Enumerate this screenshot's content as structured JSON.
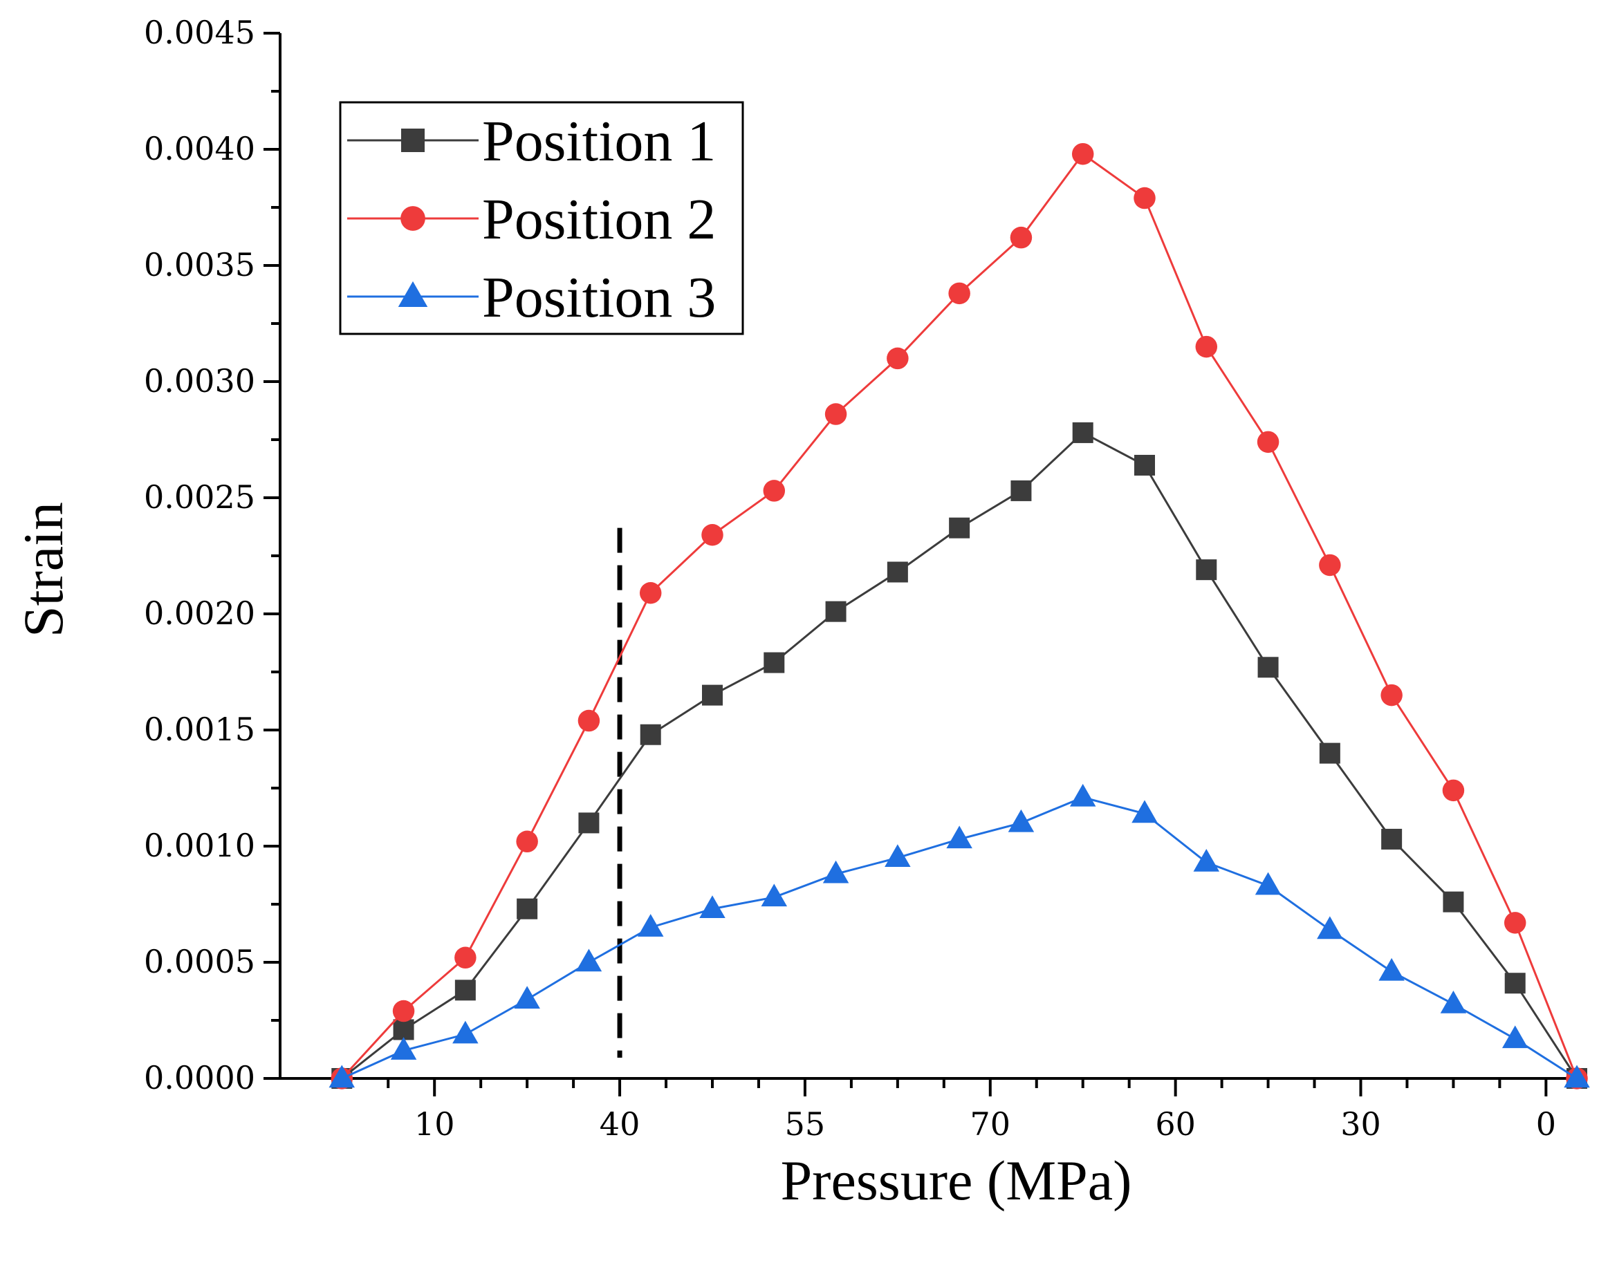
{
  "chart_data": {
    "type": "line",
    "title": "",
    "xlabel": "Pressure (MPa)",
    "ylabel": "Strain",
    "x_index": [
      0,
      1,
      2,
      3,
      4,
      5,
      6,
      7,
      8,
      9,
      10,
      11,
      12,
      13,
      14,
      15,
      16,
      17,
      18,
      19,
      20
    ],
    "x_tick_labels": [
      {
        "at": 1.5,
        "label": "10"
      },
      {
        "at": 4.5,
        "label": "40"
      },
      {
        "at": 7.5,
        "label": "55"
      },
      {
        "at": 10.5,
        "label": "70"
      },
      {
        "at": 13.5,
        "label": "60"
      },
      {
        "at": 16.5,
        "label": "30"
      },
      {
        "at": 19.5,
        "label": "0"
      }
    ],
    "x_range": [
      -1,
      20
    ],
    "ylim": [
      0,
      0.0045
    ],
    "y_ticks": [
      {
        "value": 0.0,
        "label": "0.0000"
      },
      {
        "value": 0.0005,
        "label": "0.0005"
      },
      {
        "value": 0.001,
        "label": "0.0010"
      },
      {
        "value": 0.0015,
        "label": "0.0015"
      },
      {
        "value": 0.002,
        "label": "0.0020"
      },
      {
        "value": 0.0025,
        "label": "0.0025"
      },
      {
        "value": 0.003,
        "label": "0.0030"
      },
      {
        "value": 0.0035,
        "label": "0.0035"
      },
      {
        "value": 0.004,
        "label": "0.0040"
      },
      {
        "value": 0.0045,
        "label": "0.0045"
      }
    ],
    "reference_line": {
      "at": 4.5,
      "style": "dashed",
      "color": "#000000",
      "y_to": 0.00237
    },
    "legend": {
      "position": "top-left"
    },
    "series": [
      {
        "name": "Position 1",
        "color": "#3c3c3c",
        "marker": "square",
        "x": [
          0,
          1,
          2,
          3,
          4,
          5,
          6,
          7,
          8,
          9,
          10,
          11,
          12,
          13,
          14,
          15,
          16,
          17,
          18,
          19,
          20
        ],
        "values": [
          0.0,
          0.00021,
          0.00038,
          0.00073,
          0.0011,
          0.00148,
          0.00165,
          0.00179,
          0.00201,
          0.00218,
          0.00237,
          0.00253,
          0.00278,
          0.00264,
          0.00219,
          0.00177,
          0.0014,
          0.00103,
          0.00076,
          0.00041,
          0.0
        ]
      },
      {
        "name": "Position 2",
        "color": "#ee3b3b",
        "marker": "circle",
        "x": [
          0,
          1,
          2,
          3,
          4,
          5,
          6,
          7,
          8,
          9,
          10,
          11,
          12,
          13,
          14,
          15,
          16,
          17,
          18,
          19,
          20
        ],
        "values": [
          0.0,
          0.00029,
          0.00052,
          0.00102,
          0.00154,
          0.00209,
          0.00234,
          0.00253,
          0.00286,
          0.0031,
          0.00338,
          0.00362,
          0.00398,
          0.00379,
          0.00315,
          0.00274,
          0.00221,
          0.00165,
          0.00124,
          0.00067,
          0.0
        ]
      },
      {
        "name": "Position 3",
        "color": "#1f6fe0",
        "marker": "triangle",
        "x": [
          0,
          1,
          2,
          3,
          4,
          5,
          6,
          7,
          8,
          9,
          10,
          11,
          12,
          13,
          14,
          15,
          16,
          17,
          18,
          19,
          20
        ],
        "values": [
          0.0,
          0.00012,
          0.00019,
          0.00034,
          0.0005,
          0.00065,
          0.00073,
          0.00078,
          0.00088,
          0.00095,
          0.00103,
          0.0011,
          0.00121,
          0.00114,
          0.00093,
          0.00083,
          0.00064,
          0.00046,
          0.00032,
          0.00017,
          0.0
        ]
      }
    ]
  }
}
